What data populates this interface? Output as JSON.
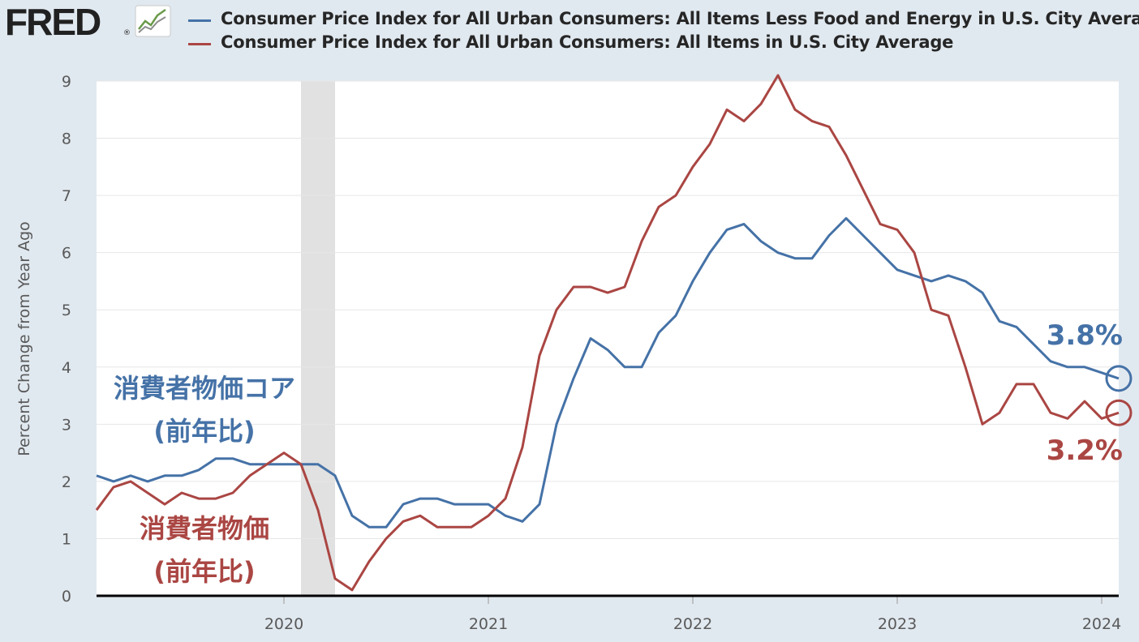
{
  "header": {
    "logo_text": "FRED",
    "logo_registered": "®"
  },
  "legend": [
    {
      "label": "Consumer Price Index for All Urban Consumers: All Items Less Food and Energy in U.S. City Average",
      "color": "#4572a7"
    },
    {
      "label": "Consumer Price Index for All Urban Consumers: All Items in U.S. City Average",
      "color": "#aa4643"
    }
  ],
  "chart_data": {
    "type": "line",
    "title": "",
    "xlabel": "",
    "ylabel": "Percent Change from Year Ago",
    "ylim": [
      0,
      9
    ],
    "xlim": [
      "2019-02",
      "2024-02"
    ],
    "y_ticks": [
      0,
      1,
      2,
      3,
      4,
      5,
      6,
      7,
      8,
      9
    ],
    "x_ticks": [
      {
        "label": "2020",
        "date": "2020-01"
      },
      {
        "label": "2021",
        "date": "2021-01"
      },
      {
        "label": "2022",
        "date": "2022-01"
      },
      {
        "label": "2023",
        "date": "2023-01"
      },
      {
        "label": "2024",
        "date": "2024-01"
      }
    ],
    "grid": true,
    "recession": {
      "start": "2020-02",
      "end": "2020-04",
      "color": "#e1e1e1"
    },
    "series": [
      {
        "name": "Consumer Price Index for All Urban Consumers: All Items Less Food and Energy in U.S. City Average",
        "color": "#4572a7",
        "start": "2019-02",
        "values": [
          2.1,
          2.0,
          2.1,
          2.0,
          2.1,
          2.1,
          2.2,
          2.4,
          2.4,
          2.3,
          2.3,
          2.3,
          2.3,
          2.3,
          2.1,
          1.4,
          1.2,
          1.2,
          1.6,
          1.7,
          1.7,
          1.6,
          1.6,
          1.6,
          1.4,
          1.3,
          1.6,
          3.0,
          3.8,
          4.5,
          4.3,
          4.0,
          4.0,
          4.6,
          4.9,
          5.5,
          6.0,
          6.4,
          6.5,
          6.2,
          6.0,
          5.9,
          5.9,
          6.3,
          6.6,
          6.3,
          6.0,
          5.7,
          5.6,
          5.5,
          5.6,
          5.5,
          5.3,
          4.8,
          4.7,
          4.4,
          4.1,
          4.0,
          4.0,
          3.9,
          3.8
        ]
      },
      {
        "name": "Consumer Price Index for All Urban Consumers: All Items in U.S. City Average",
        "color": "#aa4643",
        "start": "2019-02",
        "values": [
          1.5,
          1.9,
          2.0,
          1.8,
          1.6,
          1.8,
          1.7,
          1.7,
          1.8,
          2.1,
          2.3,
          2.5,
          2.3,
          1.5,
          0.3,
          0.1,
          0.6,
          1.0,
          1.3,
          1.4,
          1.2,
          1.2,
          1.2,
          1.4,
          1.7,
          2.6,
          4.2,
          5.0,
          5.4,
          5.4,
          5.3,
          5.4,
          6.2,
          6.8,
          7.0,
          7.5,
          7.9,
          8.5,
          8.3,
          8.6,
          9.1,
          8.5,
          8.3,
          8.2,
          7.7,
          7.1,
          6.5,
          6.4,
          6.0,
          5.0,
          4.9,
          4.0,
          3.0,
          3.2,
          3.7,
          3.7,
          3.2,
          3.1,
          3.4,
          3.1,
          3.2
        ]
      }
    ],
    "annotations": [
      {
        "text": "3.8%",
        "color": "#4572a7"
      },
      {
        "text": "3.2%",
        "color": "#aa4643"
      },
      {
        "text": "消費者物価コア",
        "color": "#4572a7"
      },
      {
        "text": "(前年比)",
        "color": "#4572a7"
      },
      {
        "text": "消費者物価",
        "color": "#aa4643"
      },
      {
        "text": "(前年比)",
        "color": "#aa4643"
      }
    ]
  }
}
